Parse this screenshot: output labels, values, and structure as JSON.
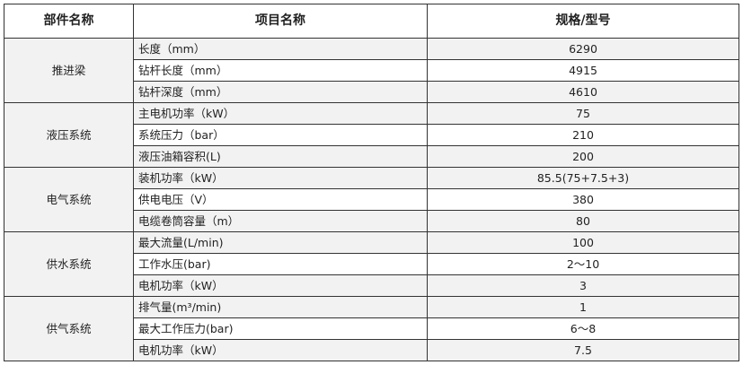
{
  "headers": [
    "部件名称",
    "项目名称",
    "规格/型号"
  ],
  "groups": [
    {
      "name": "推进梁",
      "rows": [
        {
          "item": "长度（mm）",
          "spec": "6290"
        },
        {
          "item": "钻杆长度（mm）",
          "spec": "4915"
        },
        {
          "item": "钻杆深度（mm）",
          "spec": "4610"
        }
      ]
    },
    {
      "name": "液压系统",
      "rows": [
        {
          "item": "主电机功率（kW）",
          "spec": "75"
        },
        {
          "item": "系统压力（bar）",
          "spec": "210"
        },
        {
          "item": "液压油箱容积(L)",
          "spec": "200"
        }
      ]
    },
    {
      "name": "电气系统",
      "rows": [
        {
          "item": "装机功率（kW）",
          "spec": "85.5(75+7.5+3)"
        },
        {
          "item": "供电电压（V）",
          "spec": "380"
        },
        {
          "item": "电缆卷筒容量（m）",
          "spec": "80"
        }
      ]
    },
    {
      "name": "供水系统",
      "rows": [
        {
          "item": "最大流量(L/min)",
          "spec": "100"
        },
        {
          "item": "工作水压(bar)",
          "spec": "2～10"
        },
        {
          "item": "电机功率（kW）",
          "spec": "3"
        }
      ]
    },
    {
      "name": "供气系统",
      "rows": [
        {
          "item": "排气量(m³/min)",
          "spec": "1"
        },
        {
          "item": "最大工作压力(bar)",
          "spec": "6～8"
        },
        {
          "item": "电机功率（kW）",
          "spec": "7.5"
        }
      ]
    }
  ]
}
